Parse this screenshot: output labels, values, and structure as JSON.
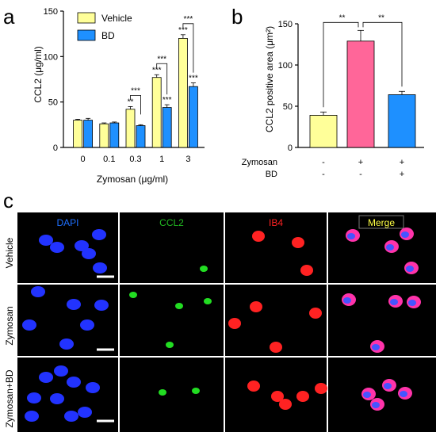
{
  "panels": {
    "a": "a",
    "b": "b",
    "c": "c"
  },
  "colors": {
    "vehicle": "#ffff99",
    "bd": "#1e90ff",
    "zymosan_b": "#ff6699"
  },
  "chart_data": [
    {
      "type": "bar",
      "panel": "a",
      "categories": [
        "0",
        "0.1",
        "0.3",
        "1",
        "3"
      ],
      "series": [
        {
          "name": "Vehicle",
          "values": [
            30,
            26,
            42,
            77,
            120
          ],
          "errors": [
            1,
            1,
            3,
            3,
            4
          ]
        },
        {
          "name": "BD",
          "values": [
            30,
            27,
            24,
            44,
            67
          ],
          "errors": [
            2,
            1,
            1,
            3,
            4
          ]
        }
      ],
      "xlabel": "Zymosan (μg/ml)",
      "ylabel": "CCL2 (μg/ml)",
      "ylim": [
        0,
        150
      ],
      "yticks": [
        "0",
        "50",
        "100",
        "150"
      ],
      "legend": "top-left",
      "annotations": {
        "above": [
          "",
          "",
          "**",
          "***",
          "***"
        ],
        "bd_above": [
          "",
          "",
          "",
          "***",
          "***"
        ],
        "bracket": [
          "",
          "",
          "***",
          "***",
          "***"
        ]
      }
    },
    {
      "type": "bar",
      "panel": "b",
      "categories": [
        "Vehicle",
        "Zymosan",
        "Zymosan+BD"
      ],
      "values": [
        39,
        129,
        64
      ],
      "errors": [
        4,
        13,
        4
      ],
      "ylabel": "CCL2 positive area (μm²)",
      "ylim": [
        0,
        150
      ],
      "yticks": [
        "0",
        "50",
        "100",
        "150"
      ],
      "brackets": [
        "**",
        "**"
      ],
      "conditions": [
        {
          "label": "Zymosan",
          "values": [
            "-",
            "+",
            "+"
          ]
        },
        {
          "label": "BD",
          "values": [
            "-",
            "-",
            "+"
          ]
        }
      ]
    }
  ],
  "micrographs": {
    "headers": [
      {
        "label": "DAPI",
        "color": "#1e6fff"
      },
      {
        "label": "CCL2",
        "color": "#22bb22"
      },
      {
        "label": "IB4",
        "color": "#ff2222"
      },
      {
        "label": "Merge",
        "color": "#ffff44"
      }
    ],
    "rows": [
      "Vehicle",
      "Zymosan",
      "Zymosan+BD"
    ]
  }
}
